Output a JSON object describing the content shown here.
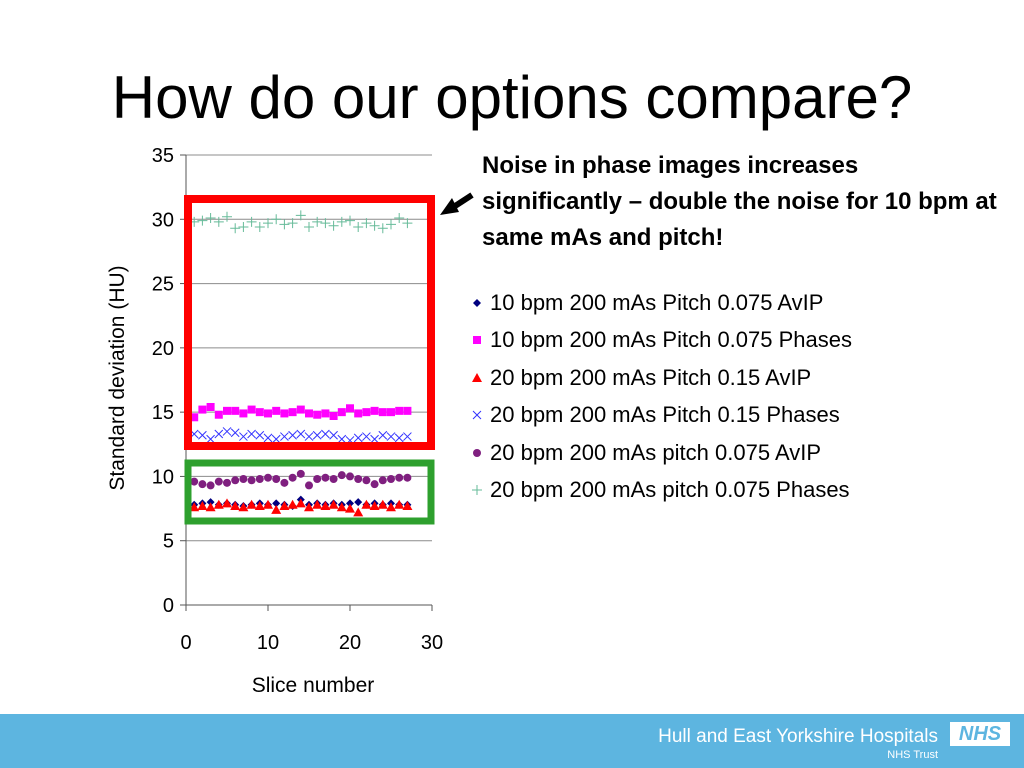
{
  "slide": {
    "title": "How do our options compare?",
    "callout": "Noise in phase images increases significantly – double the noise for 10 bpm at same mAs and pitch!"
  },
  "footer": {
    "organization": "Hull and East Yorkshire Hospitals",
    "subtitle": "NHS Trust",
    "logo_text": "NHS"
  },
  "colors": {
    "red_box": "#ff0000",
    "green_box": "#2ea02e",
    "footer_bg": "#5db5e0"
  },
  "chart_data": {
    "type": "scatter",
    "title": "",
    "xlabel": "Slice number",
    "ylabel": "Standard deviation (HU)",
    "xlim": [
      0,
      30
    ],
    "ylim": [
      0,
      35
    ],
    "xticks": [
      0,
      10,
      20,
      30
    ],
    "yticks": [
      0,
      5,
      10,
      15,
      20,
      25,
      30,
      35
    ],
    "grid": "horizontal",
    "legend_position": "right",
    "x": [
      1,
      2,
      3,
      4,
      5,
      6,
      7,
      8,
      9,
      10,
      11,
      12,
      13,
      14,
      15,
      16,
      17,
      18,
      19,
      20,
      21,
      22,
      23,
      24,
      25,
      26,
      27
    ],
    "series": [
      {
        "name": "10 bpm 200 mAs Pitch 0.075 AvIP",
        "marker": "diamond",
        "color": "#000080",
        "values": [
          7.8,
          7.9,
          8.0,
          7.8,
          7.9,
          7.8,
          7.7,
          7.8,
          7.9,
          7.8,
          7.9,
          7.8,
          7.7,
          8.2,
          7.8,
          7.9,
          7.8,
          7.9,
          7.8,
          7.9,
          8.0,
          7.8,
          7.9,
          7.8,
          7.9,
          7.8,
          7.8
        ]
      },
      {
        "name": "10 bpm 200 mAs Pitch 0.075 Phases",
        "marker": "square",
        "color": "#ff00ff",
        "values": [
          14.6,
          15.2,
          15.4,
          14.8,
          15.1,
          15.1,
          14.9,
          15.2,
          15.0,
          14.9,
          15.1,
          14.9,
          15.0,
          15.2,
          14.9,
          14.8,
          14.9,
          14.7,
          15.0,
          15.3,
          14.9,
          15.0,
          15.1,
          15.0,
          15.0,
          15.1,
          15.1
        ]
      },
      {
        "name": "20 bpm 200 mAs Pitch 0.15 AvIP",
        "marker": "triangle",
        "color": "#ff0000",
        "values": [
          7.6,
          7.7,
          7.6,
          7.8,
          7.9,
          7.7,
          7.6,
          7.8,
          7.7,
          7.8,
          7.4,
          7.7,
          7.8,
          7.9,
          7.6,
          7.8,
          7.7,
          7.8,
          7.6,
          7.5,
          7.2,
          7.8,
          7.7,
          7.8,
          7.6,
          7.8,
          7.7
        ]
      },
      {
        "name": "20 bpm 200 mAs Pitch 0.15 Phases",
        "marker": "x",
        "color": "#3333ff",
        "values": [
          13.3,
          13.2,
          12.9,
          13.3,
          13.5,
          13.4,
          13.1,
          13.3,
          13.2,
          13.0,
          12.9,
          13.1,
          13.2,
          13.3,
          13.1,
          13.2,
          13.3,
          13.2,
          12.9,
          12.8,
          13.0,
          13.1,
          12.9,
          13.2,
          13.1,
          13.0,
          13.1
        ]
      },
      {
        "name": "20 bpm 200 mAs pitch 0.075 AvIP",
        "marker": "circle",
        "color": "#7f1f7f",
        "values": [
          9.6,
          9.4,
          9.3,
          9.6,
          9.5,
          9.7,
          9.8,
          9.7,
          9.8,
          9.9,
          9.8,
          9.5,
          9.9,
          10.2,
          9.3,
          9.8,
          9.9,
          9.8,
          10.1,
          10.0,
          9.8,
          9.7,
          9.4,
          9.7,
          9.8,
          9.9,
          9.9
        ]
      },
      {
        "name": "20 bpm 200 mAs pitch 0.075 Phases",
        "marker": "plus",
        "color": "#66bb99",
        "values": [
          29.8,
          29.9,
          30.1,
          29.8,
          30.2,
          29.3,
          29.4,
          29.8,
          29.4,
          29.7,
          30.0,
          29.6,
          29.7,
          30.3,
          29.4,
          29.8,
          29.7,
          29.5,
          29.8,
          29.9,
          29.4,
          29.7,
          29.5,
          29.3,
          29.6,
          30.1,
          29.7
        ]
      }
    ]
  }
}
